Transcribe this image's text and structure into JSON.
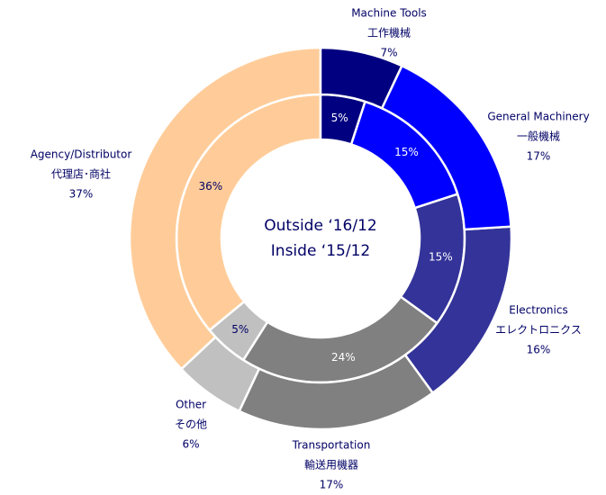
{
  "chart_data": {
    "type": "nested-donut",
    "categories": [
      "Machine Tools",
      "General Machinery",
      "Electronics",
      "Transportation",
      "Other",
      "Agency/Distributor"
    ],
    "categories_ja": [
      "工作機械",
      "一般機械",
      "エレクトロニクス",
      "輸送用機器",
      "その他",
      "代理店･商社"
    ],
    "colors": [
      "#000080",
      "#0000ff",
      "#333399",
      "#808080",
      "#c0c0c0",
      "#ffcc99"
    ],
    "series": [
      {
        "name": "Outside ‘16/12",
        "values": [
          7,
          17,
          16,
          17,
          6,
          37
        ],
        "value_labels": [
          "7%",
          "17%",
          "16%",
          "17%",
          "6%",
          "37%"
        ]
      },
      {
        "name": "Inside ‘15/12",
        "values": [
          5,
          15,
          15,
          24,
          5,
          36
        ],
        "value_labels": [
          "5%",
          "15%",
          "15%",
          "24%",
          "5%",
          "36%"
        ]
      }
    ]
  }
}
